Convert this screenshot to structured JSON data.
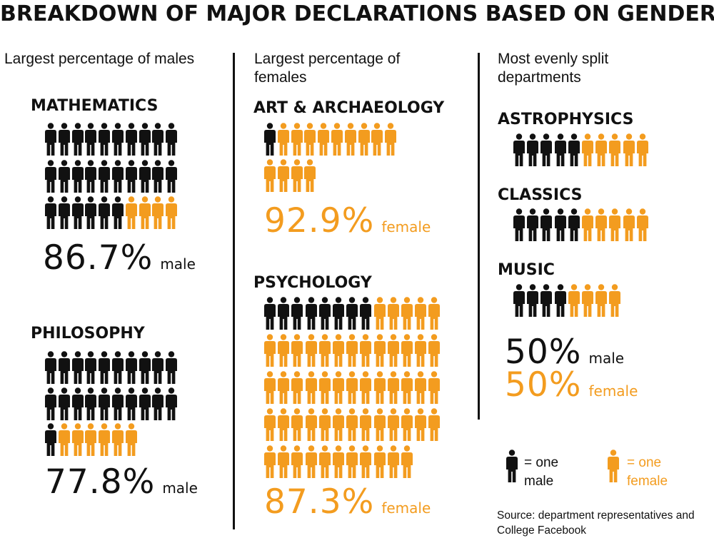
{
  "colors": {
    "male": "#111111",
    "female": "#f39c1f"
  },
  "title": "BREAKDOWN OF MAJOR DECLARATIONS BASED ON GENDER",
  "columns": {
    "males": "Largest percentage of males",
    "females": "Largest percentage of females",
    "even": "Most evenly split departments"
  },
  "legend": {
    "male_icon": "male-person-icon",
    "female_icon": "female-person-icon",
    "male_text": "= one male",
    "female_text": "= one female"
  },
  "source": "Source: department representatives and College Facebook",
  "chart_data": {
    "type": "pictogram",
    "departments": [
      {
        "name": "MATHEMATICS",
        "male": 26,
        "female": 4,
        "percent": "86.7%",
        "label": "male"
      },
      {
        "name": "PHILOSOPHY",
        "male": 21,
        "female": 6,
        "percent": "77.8%",
        "label": "male"
      },
      {
        "name": "ART & ARCHAEOLOGY",
        "male": 1,
        "female": 13,
        "percent": "92.9%",
        "label": "female"
      },
      {
        "name": "PSYCHOLOGY",
        "male": 8,
        "female": 55,
        "percent": "87.3%",
        "label": "female"
      },
      {
        "name": "ASTROPHYSICS",
        "male": 5,
        "female": 5
      },
      {
        "name": "CLASSICS",
        "male": 5,
        "female": 5
      },
      {
        "name": "MUSIC",
        "male": 4,
        "female": 4
      }
    ],
    "even_split": {
      "male_percent": "50%",
      "male_label": "male",
      "female_percent": "50%",
      "female_label": "female"
    }
  }
}
